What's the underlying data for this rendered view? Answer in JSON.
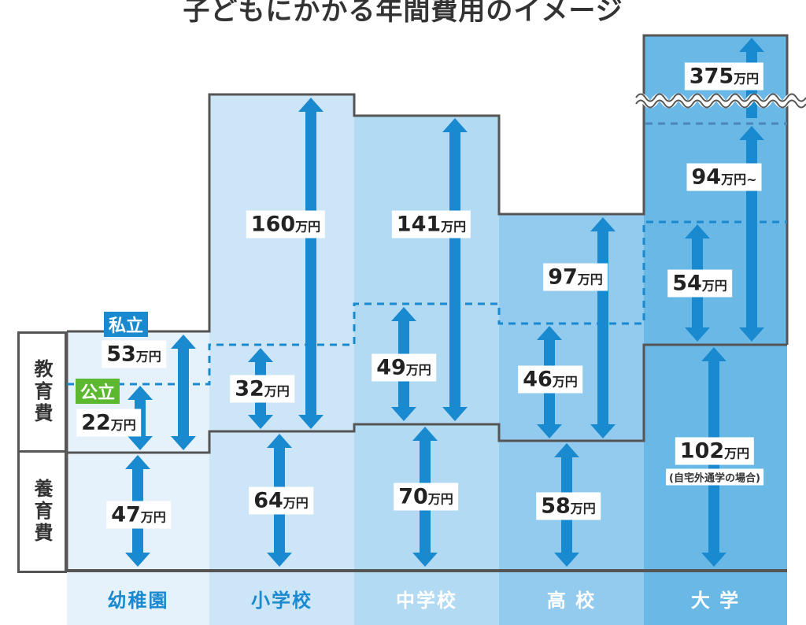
{
  "title": "子どもにかかる年間費用のイメージ",
  "side_labels": {
    "education": "教育費",
    "rearing": "養育費"
  },
  "badges": {
    "private": "私立",
    "public": "公立"
  },
  "colors": {
    "arrow": "#1a8ad0",
    "private_badge": "#1a8ad0",
    "public_badge": "#5cb82e",
    "outline": "#555555",
    "columns": [
      "#e6f2fb",
      "#cde6f7",
      "#b3daf3",
      "#93cbee",
      "#6ab8e6"
    ]
  },
  "chart_data": {
    "type": "bar",
    "title": "子どもにかかる年間費用のイメージ",
    "unit": "万円",
    "categories": [
      "幼稚園",
      "小学校",
      "中学校",
      "高 校",
      "大 学"
    ],
    "series": [
      {
        "name": "公立",
        "group": "教育費",
        "labels": [
          "22",
          "32",
          "49",
          "46",
          "54"
        ],
        "values": [
          22,
          32,
          49,
          46,
          54
        ]
      },
      {
        "name": "私立",
        "group": "教育費",
        "labels": [
          "53",
          "160",
          "141",
          "97",
          "94"
        ],
        "values": [
          53,
          160,
          141,
          97,
          94
        ]
      },
      {
        "name": "養育費",
        "group": "養育費",
        "labels": [
          "47",
          "64",
          "70",
          "58",
          "102"
        ],
        "values": [
          47,
          64,
          70,
          58,
          102
        ]
      }
    ],
    "extra": {
      "category": "大 学",
      "label": "375",
      "value": 375
    },
    "private_suffix_university": "~",
    "university_note": "(自宅外通学の場合)"
  }
}
